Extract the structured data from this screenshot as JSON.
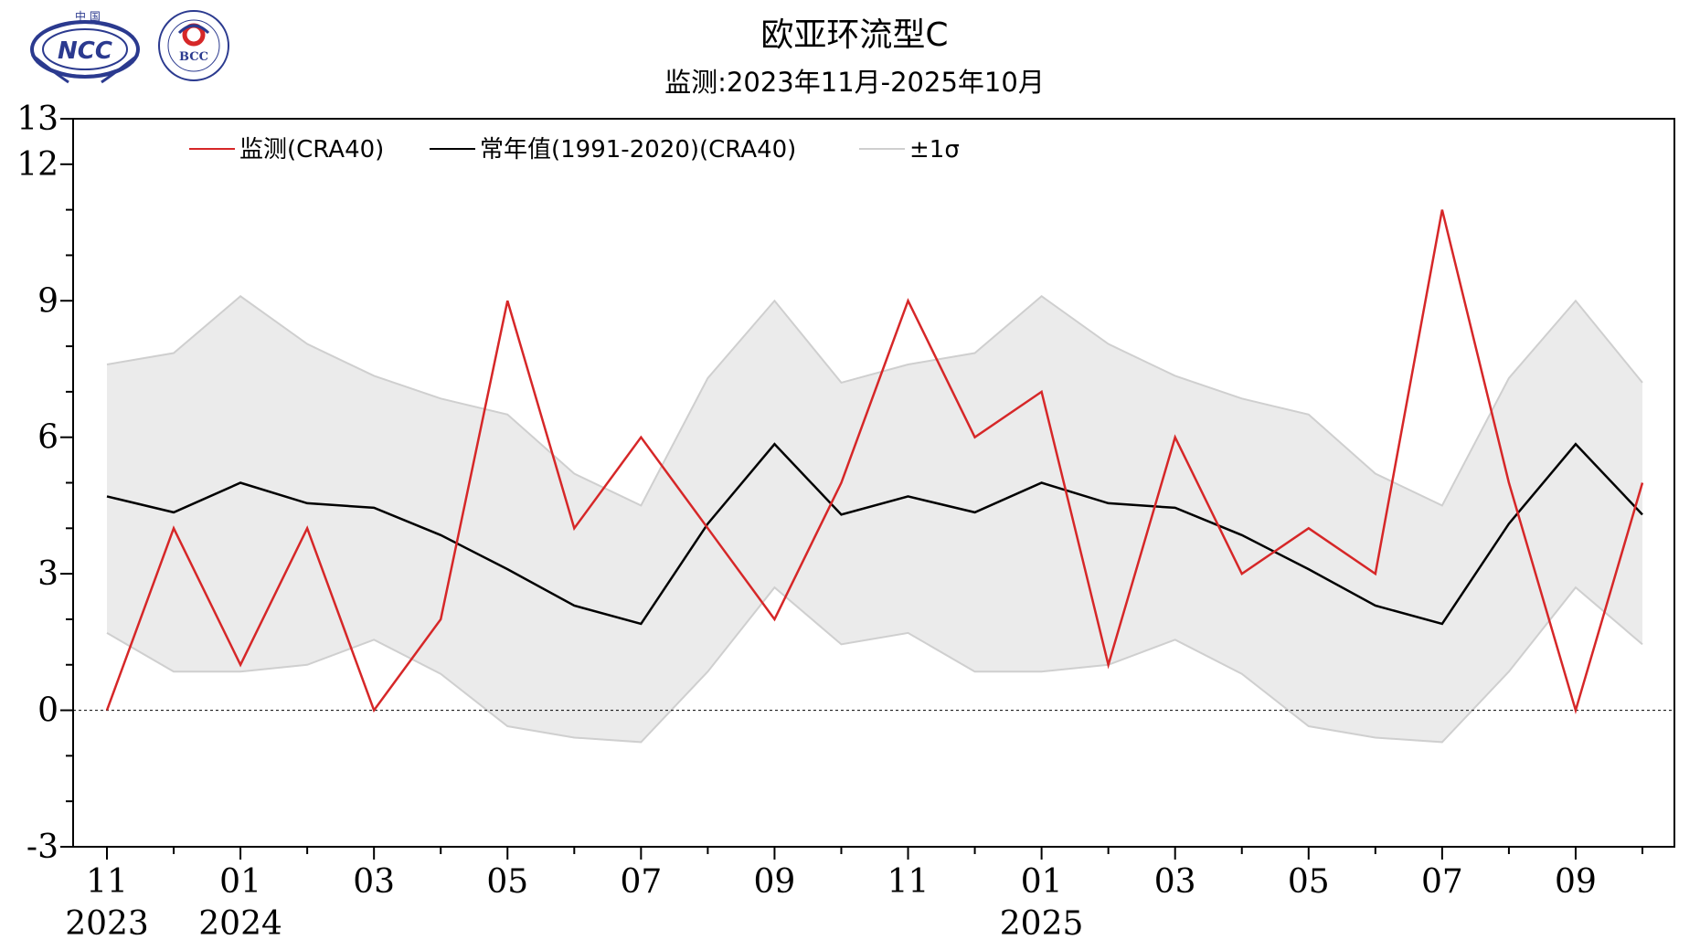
{
  "logos": {
    "ncc": {
      "top_text": "中 国",
      "main_text": "NCC",
      "icon": "ncc-logo-icon"
    },
    "bcc": {
      "main_text": "BCC",
      "ring_text": "BEIJING CLIMATE CENTER",
      "icon": "bcc-logo-icon"
    }
  },
  "colors": {
    "monitor": "#d62728",
    "normal": "#000000",
    "band_fill": "#ebebeb",
    "band_edge": "#cfcfcf"
  },
  "chart_data": {
    "type": "line",
    "title": "欧亚环流型C",
    "subtitle": "监测:2023年11月-2025年10月",
    "ylim": [
      -3,
      13
    ],
    "yticks": [
      -3,
      0,
      3,
      6,
      9,
      12,
      13
    ],
    "grid": false,
    "zero_line": "dotted",
    "legend_position": "top-left",
    "x": [
      "2023-11",
      "2023-12",
      "2024-01",
      "2024-02",
      "2024-03",
      "2024-04",
      "2024-05",
      "2024-06",
      "2024-07",
      "2024-08",
      "2024-09",
      "2024-10",
      "2024-11",
      "2024-12",
      "2025-01",
      "2025-02",
      "2025-03",
      "2025-04",
      "2025-05",
      "2025-06",
      "2025-07",
      "2025-08",
      "2025-09",
      "2025-10"
    ],
    "xticks": [
      {
        "index": 0,
        "month": "11",
        "year": "2023"
      },
      {
        "index": 2,
        "month": "01",
        "year": "2024"
      },
      {
        "index": 4,
        "month": "03",
        "year": ""
      },
      {
        "index": 6,
        "month": "05",
        "year": ""
      },
      {
        "index": 8,
        "month": "07",
        "year": ""
      },
      {
        "index": 10,
        "month": "09",
        "year": ""
      },
      {
        "index": 12,
        "month": "11",
        "year": ""
      },
      {
        "index": 14,
        "month": "01",
        "year": "2025"
      },
      {
        "index": 16,
        "month": "03",
        "year": ""
      },
      {
        "index": 18,
        "month": "05",
        "year": ""
      },
      {
        "index": 20,
        "month": "07",
        "year": ""
      },
      {
        "index": 22,
        "month": "09",
        "year": ""
      }
    ],
    "series": [
      {
        "name": "监测(CRA40)",
        "kind": "line",
        "values": [
          0,
          4,
          1,
          4,
          0,
          2,
          9,
          4,
          6,
          4,
          2,
          5,
          9,
          6,
          7,
          1,
          6,
          3,
          4,
          3,
          11,
          5,
          0,
          5
        ]
      },
      {
        "name": "常年值(1991-2020)(CRA40)",
        "kind": "line",
        "values": [
          4.7,
          4.35,
          5.0,
          4.55,
          4.45,
          3.85,
          3.1,
          2.3,
          1.9,
          4.1,
          5.85,
          4.3,
          4.7,
          4.35,
          5.0,
          4.55,
          4.45,
          3.85,
          3.1,
          2.3,
          1.9,
          4.1,
          5.85,
          4.3
        ]
      },
      {
        "name": "±1σ",
        "kind": "band",
        "upper": [
          7.6,
          7.85,
          9.1,
          8.05,
          7.35,
          6.85,
          6.5,
          5.2,
          4.5,
          7.3,
          9.0,
          7.2,
          7.6,
          7.85,
          9.1,
          8.05,
          7.35,
          6.85,
          6.5,
          5.2,
          4.5,
          7.3,
          9.0,
          7.2
        ],
        "lower": [
          1.7,
          0.85,
          0.85,
          1.0,
          1.55,
          0.8,
          -0.35,
          -0.6,
          -0.7,
          0.85,
          2.7,
          1.45,
          1.7,
          0.85,
          0.85,
          1.0,
          1.55,
          0.8,
          -0.35,
          -0.6,
          -0.7,
          0.85,
          2.7,
          1.45
        ]
      }
    ]
  }
}
